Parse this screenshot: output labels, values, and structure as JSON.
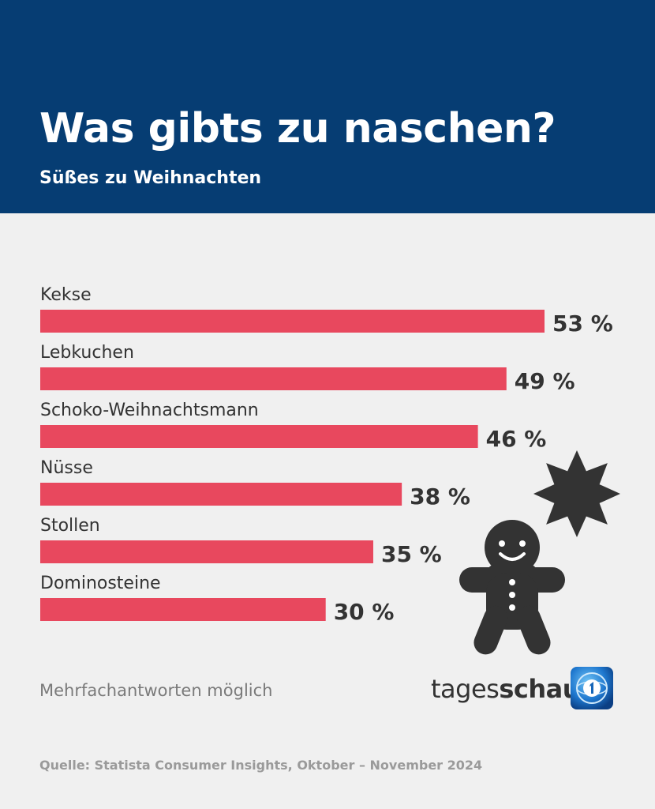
{
  "header": {
    "title": "Was gibts zu naschen?",
    "subtitle": "Süßes zu Weihnachten"
  },
  "chart_data": {
    "type": "bar",
    "orientation": "horizontal",
    "title": "Was gibts zu naschen?",
    "subtitle": "Süßes zu Weihnachten",
    "categories": [
      "Kekse",
      "Lebkuchen",
      "Schoko-Weihnachtsmann",
      "Nüsse",
      "Stollen",
      "Dominosteine"
    ],
    "values": [
      53,
      49,
      46,
      38,
      35,
      30
    ],
    "value_labels": [
      "53 %",
      "49 %",
      "46 %",
      "38 %",
      "35 %",
      "30 %"
    ],
    "unit": "%",
    "xlim": [
      0,
      53
    ],
    "grid": false,
    "legend": "none",
    "bar_color": "#e8485e"
  },
  "footer": {
    "note": "Mehrfachantworten möglich",
    "brand_part1": "tages",
    "brand_part2": "schau",
    "source": "Quelle: Statista Consumer Insights, Oktober – November 2024"
  },
  "icons": {
    "star": "star-icon",
    "gingerbread": "gingerbread-man-icon",
    "logo": "tagesschau-logo-icon"
  },
  "colors": {
    "header_bg": "#063d73",
    "page_bg": "#f0f0f0",
    "bar": "#e8485e",
    "text_dark": "#333333",
    "decor": "#333333",
    "logo_blue": "#1565b8"
  }
}
